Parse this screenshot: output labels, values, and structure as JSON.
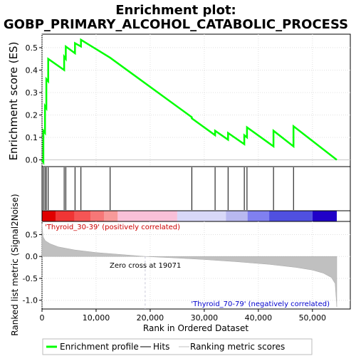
{
  "title_line1": "Enrichment plot:",
  "title_line2": "GOBP_PRIMARY_ALCOHOL_CATABOLIC_PROCESS",
  "colors": {
    "enrichment": "#00ff00",
    "hits": "#000000",
    "metric_fill": "#c0c0c0",
    "pos_label": "#cc0000",
    "neg_label": "#0000cc",
    "zero_line": "#c8c8d8"
  },
  "chart_data": {
    "type": "line",
    "xlabel": "Rank in Ordered Dataset",
    "es_panel": {
      "ylabel": "Enrichment score (ES)",
      "ylim": [
        -0.03,
        0.56
      ],
      "yticks": [
        0.0,
        0.1,
        0.2,
        0.3,
        0.4,
        0.5
      ],
      "ytick_labels": [
        "0.0",
        "0.1",
        "0.2",
        "0.3",
        "0.4",
        "0.5"
      ],
      "grid": true
    },
    "metric_panel": {
      "ylabel": "Ranked list metric (Signal2Noise)",
      "ylim": [
        -1.2,
        0.8
      ],
      "yticks": [
        0.5,
        0.0,
        -0.5,
        -1.0
      ],
      "ytick_labels": [
        "0.5",
        "0.0",
        "-0.5",
        "-1.0"
      ],
      "pos_label": "'Thyroid_30-39' (positively correlated)",
      "neg_label": "'Thyroid_70-79' (negatively correlated)",
      "zero_cross_label": "Zero cross at 19071",
      "zero_cross": 19071
    },
    "xlim": [
      0,
      57000
    ],
    "xticks": [
      0,
      10000,
      20000,
      30000,
      40000,
      50000
    ],
    "xtick_labels": [
      "0",
      "10,000",
      "20,000",
      "30,000",
      "40,000",
      "50,000"
    ],
    "dataset_size": 54500,
    "hits": [
      250,
      550,
      800,
      1150,
      4100,
      4400,
      6100,
      7200,
      12600,
      27700,
      32000,
      34400,
      37400,
      37900,
      42800,
      46500
    ],
    "es_profile": {
      "x": [
        0,
        250,
        250,
        550,
        550,
        800,
        800,
        1150,
        1150,
        4100,
        4100,
        4400,
        4400,
        6100,
        6100,
        7200,
        7200,
        12600,
        12600,
        27700,
        27700,
        32000,
        32000,
        34400,
        34400,
        37400,
        37400,
        37900,
        37900,
        42800,
        42800,
        46500,
        46500,
        54500
      ],
      "y": [
        0.0,
        -0.01,
        0.13,
        0.12,
        0.24,
        0.23,
        0.36,
        0.35,
        0.45,
        0.4,
        0.46,
        0.45,
        0.505,
        0.475,
        0.52,
        0.505,
        0.535,
        0.455,
        0.455,
        0.19,
        0.185,
        0.11,
        0.13,
        0.09,
        0.12,
        0.07,
        0.11,
        0.1,
        0.145,
        0.06,
        0.13,
        0.06,
        0.15,
        0.0
      ]
    },
    "metric_profile": {
      "x": [
        0,
        200,
        600,
        1500,
        3000,
        6000,
        10000,
        14000,
        19071,
        19071,
        24000,
        30000,
        36000,
        42000,
        47000,
        50000,
        52000,
        53500,
        54200,
        54500
      ],
      "y": [
        0.75,
        0.45,
        0.36,
        0.29,
        0.22,
        0.15,
        0.09,
        0.05,
        0.0,
        0.0,
        -0.03,
        -0.07,
        -0.12,
        -0.18,
        -0.25,
        -0.31,
        -0.38,
        -0.48,
        -0.62,
        -1.15
      ]
    },
    "heat_segments": [
      {
        "from": 0,
        "to": 2500,
        "color": "#e00000"
      },
      {
        "from": 2500,
        "to": 6000,
        "color": "#f03535"
      },
      {
        "from": 6000,
        "to": 9000,
        "color": "#f55555"
      },
      {
        "from": 9000,
        "to": 11500,
        "color": "#f77777"
      },
      {
        "from": 11500,
        "to": 14000,
        "color": "#f89999"
      },
      {
        "from": 14000,
        "to": 25000,
        "color": "#f9c0d8"
      },
      {
        "from": 25000,
        "to": 34000,
        "color": "#d8d8f8"
      },
      {
        "from": 34000,
        "to": 38000,
        "color": "#b8b8f0"
      },
      {
        "from": 38000,
        "to": 42000,
        "color": "#8080f0"
      },
      {
        "from": 42000,
        "to": 50000,
        "color": "#5050e0"
      },
      {
        "from": 50000,
        "to": 54500,
        "color": "#2000c8"
      }
    ]
  },
  "legend": {
    "items": [
      {
        "label": "Enrichment profile",
        "color": "#00ff00"
      },
      {
        "label": "Hits",
        "color": "#000000"
      },
      {
        "label": "Ranking metric scores",
        "color": "#c0c0c0"
      }
    ]
  }
}
